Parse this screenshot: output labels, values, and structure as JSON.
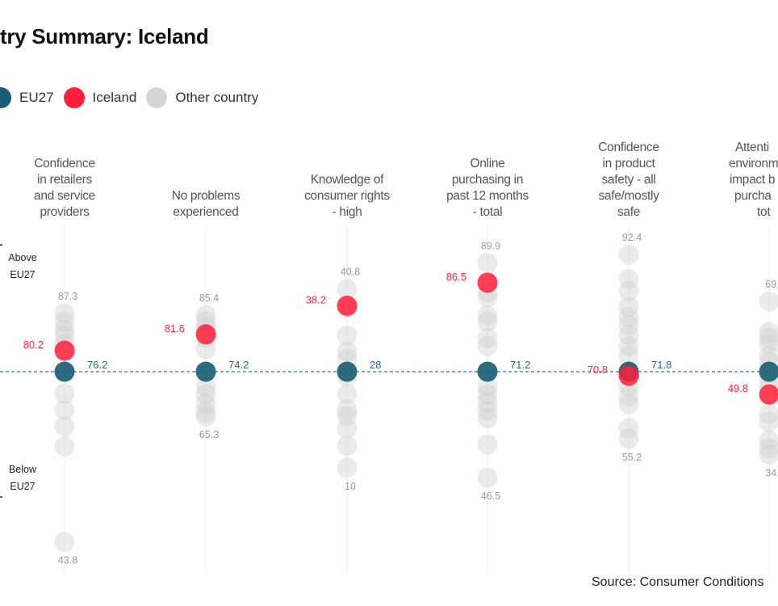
{
  "title": "try Summary: Iceland",
  "legend": [
    {
      "label": "EU27",
      "color": "#1b5e73"
    },
    {
      "label": "Iceland",
      "color": "#ff1f3a"
    },
    {
      "label": "Other country",
      "color": "#d6d6d6"
    }
  ],
  "side_labels": {
    "above": [
      "Above",
      "EU27"
    ],
    "below": [
      "Below",
      "EU27"
    ]
  },
  "source": "Source: Consumer Conditions",
  "chart_data": {
    "type": "scatter",
    "categories": [
      "Confidence in retailers and service providers",
      "No problems experienced",
      "Knowledge of consumer rights - high",
      "Online purchasing in past 12 months - total",
      "Confidence in product safety - all safe/mostly safe",
      "Attenti environm impact b purcha tot"
    ],
    "columns": [
      {
        "heading": [
          "Confidence",
          "in retailers",
          "and service",
          "providers"
        ],
        "eu27": 76.2,
        "iceland": 80.2,
        "max": 87.3,
        "min": 43.8,
        "max_label": "87.3",
        "min_label": "43.8",
        "others": [
          87.3,
          85.7,
          84.2,
          83.1,
          81.6,
          72.0,
          68.9,
          65.8,
          62.0,
          43.8
        ]
      },
      {
        "heading": [
          "No problems",
          "experienced"
        ],
        "eu27": 74.2,
        "iceland": 81.6,
        "max": 85.4,
        "min": 65.3,
        "max_label": "85.4",
        "min_label": "65.3",
        "others": [
          85.4,
          84.2,
          83.1,
          81.0,
          78.7,
          71.3,
          69.7,
          67.8,
          66.1,
          65.3
        ]
      },
      {
        "heading": [
          "Knowledge of",
          "consumer rights",
          "- high"
        ],
        "eu27": 28,
        "iceland": 38.2,
        "max": 40.8,
        "min": 10,
        "max_label": "40.8",
        "min_label": "10",
        "others": [
          40.8,
          37.9,
          33.6,
          31.1,
          29.9,
          27.1,
          23.8,
          20.9,
          19.7,
          17.4,
          14.1,
          10
        ]
      },
      {
        "heading": [
          "Online",
          "purchasing in",
          "past 12 months",
          "- total"
        ],
        "eu27": 71.2,
        "iceland": 86.5,
        "max": 89.9,
        "min": 46.5,
        "max_label": "89.9",
        "min_label": "46.5",
        "others": [
          89.9,
          84.9,
          84.0,
          80.9,
          79.8,
          77.0,
          75.6,
          67.8,
          65.9,
          64.0,
          62.1,
          60.3,
          54.2,
          46.5
        ]
      },
      {
        "heading": [
          "Confidence",
          "in product",
          "safety - all",
          "safe/mostly",
          "safe"
        ],
        "eu27": 71.8,
        "iceland": 70.8,
        "max": 92.4,
        "min": 55.2,
        "max_label": "92.4",
        "min_label": "55.2",
        "others": [
          92.4,
          88.1,
          86.0,
          83.2,
          81.4,
          80.0,
          78.2,
          76.3,
          74.6,
          68.2,
          65.8,
          63.8,
          57.8,
          55.2
        ]
      },
      {
        "heading": [
          "Attenti",
          "environm",
          "impact b",
          "purcha",
          "tot"
        ],
        "eu27": null,
        "iceland": 49.8,
        "max_label": "69.",
        "min_label": "34.",
        "others": [
          69,
          63.2,
          62.2,
          61.0,
          58.8,
          57.6,
          53.7,
          51.5,
          44.7,
          42.6,
          37.7,
          35.6,
          34
        ]
      }
    ],
    "reference_line": "EU27",
    "grid": false
  }
}
